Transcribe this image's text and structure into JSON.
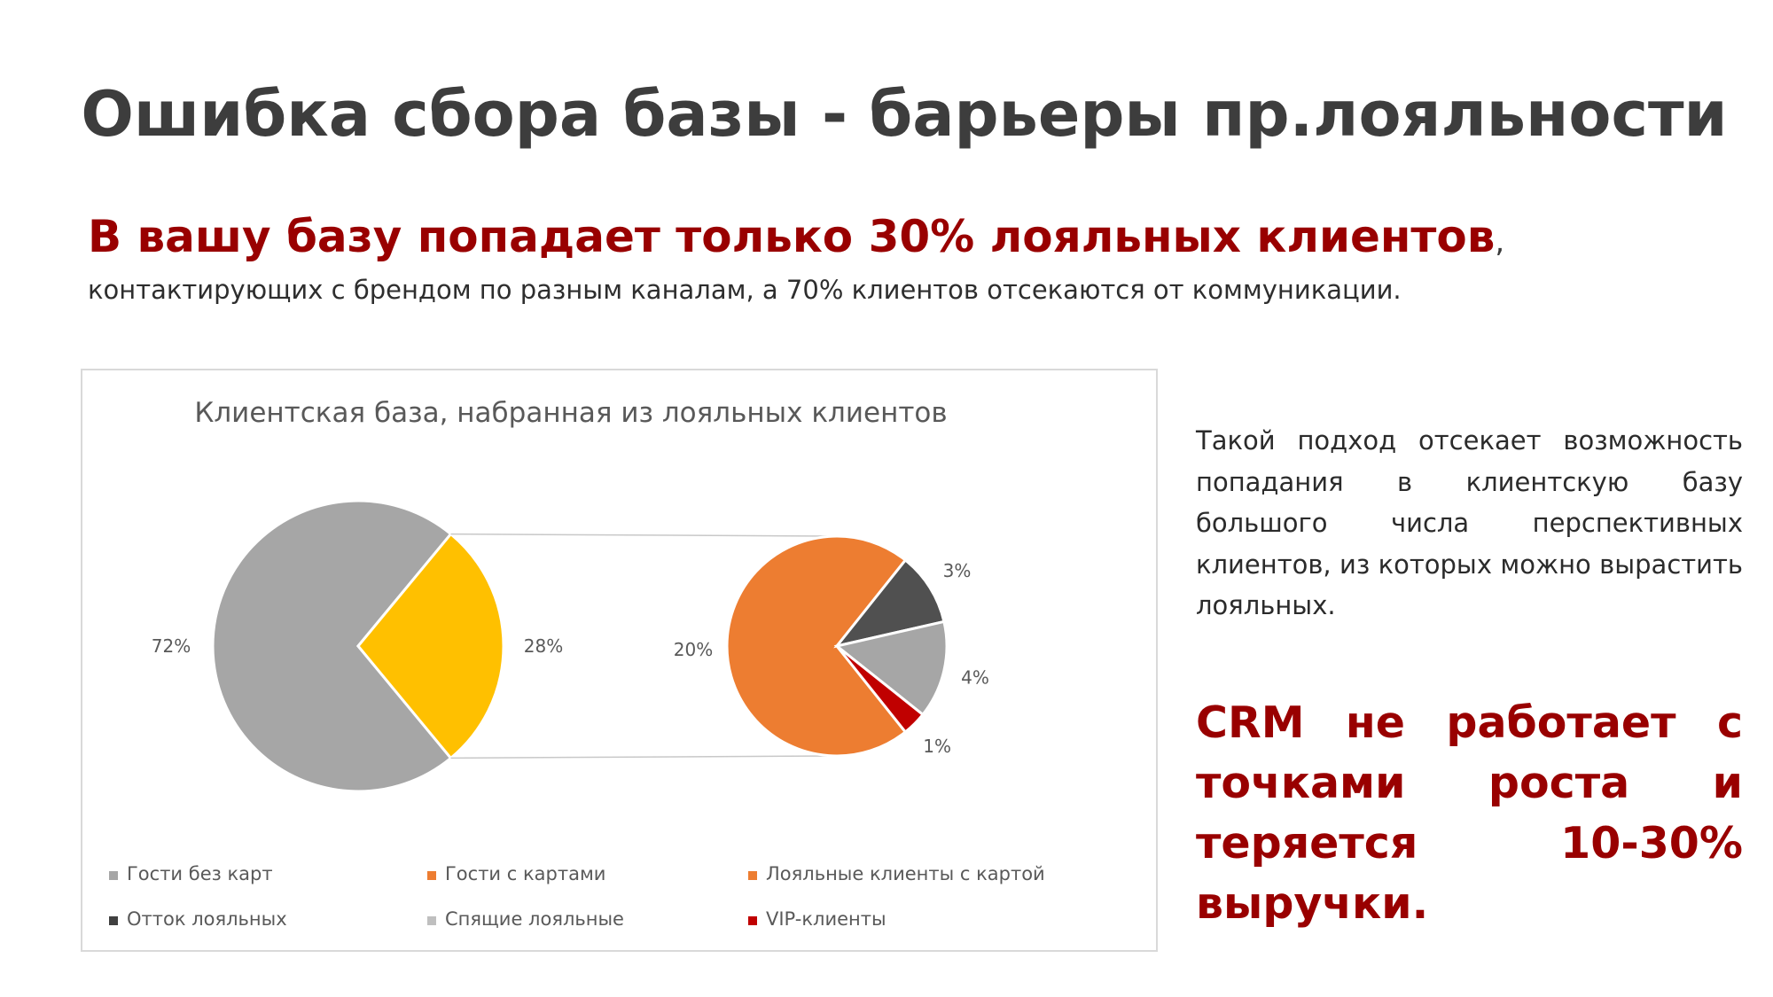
{
  "title": "Ошибка сбора базы - барьеры пр.лояльности",
  "headline": "В вашу базу попадает только 30% лояльных клиентов",
  "headline_comma": ",",
  "subline": "контактирующих с брендом по разным каналам,  а 70% клиентов отсекаются от коммуникации.",
  "side_text": "Такой подход отсекает возможность попадания в клиентскую базу большого числа перспективных клиентов, из которых можно вырастить лояльных.",
  "side_bold": "CRM не работает с точками роста и теряется 10-30% выручки.",
  "chart_data": {
    "type": "pie",
    "subtype": "pie-of-pie",
    "title": "Клиентская база, набранная из лояльных клиентов",
    "main_pie": [
      {
        "label": "72%",
        "value": 72,
        "color": "#a6a6a6",
        "legend": "Гости без карт"
      },
      {
        "label": "28%",
        "value": 28,
        "color": "#ffc000",
        "legend": "Гости с картами"
      }
    ],
    "secondary_pie": [
      {
        "label": "20%",
        "value": 20,
        "color": "#ed7d31",
        "legend": "Лояльные клиенты с картой"
      },
      {
        "label": "3%",
        "value": 3,
        "color": "#505050",
        "legend": "Отток лояльных"
      },
      {
        "label": "4%",
        "value": 4,
        "color": "#a6a6a6",
        "legend": "Спящие лояльные"
      },
      {
        "label": "1%",
        "value": 1,
        "color": "#c00000",
        "legend": "VIP-клиенты"
      }
    ],
    "legend": [
      {
        "name": "Гости без карт",
        "color": "#a6a6a6"
      },
      {
        "name": "Гости с картами",
        "color": "#ed7d31"
      },
      {
        "name": "Лояльные клиенты с картой",
        "color": "#ed7d31"
      },
      {
        "name": "Отток лояльных",
        "color": "#404040"
      },
      {
        "name": "Спящие лояльные",
        "color": "#bfbfbf"
      },
      {
        "name": "VIP-клиенты",
        "color": "#c00000"
      }
    ],
    "legend_position": "bottom"
  }
}
